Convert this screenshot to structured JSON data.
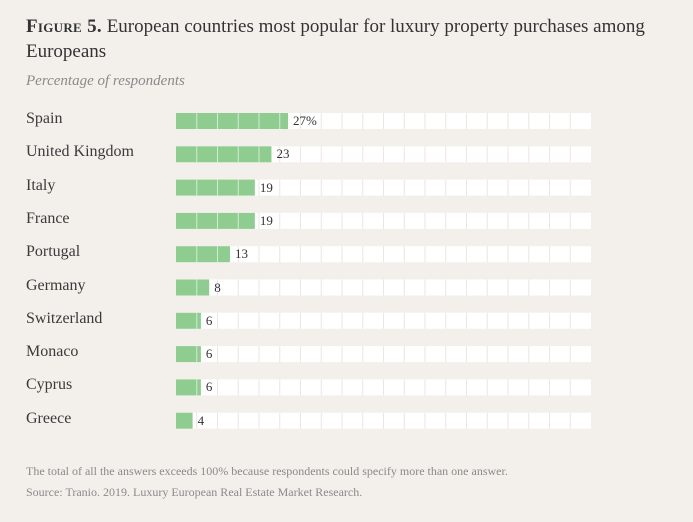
{
  "chart_data": {
    "type": "bar",
    "orientation": "horizontal",
    "title_prefix": "Figure 5.",
    "title": "European countries most popular for luxury property purchases among Europeans",
    "subtitle": "Percentage of respondents",
    "categories": [
      "Spain",
      "United Kingdom",
      "Italy",
      "France",
      "Portugal",
      "Germany",
      "Switzerland",
      "Monaco",
      "Cyprus",
      "Greece"
    ],
    "values": [
      27,
      23,
      19,
      19,
      13,
      8,
      6,
      6,
      6,
      4
    ],
    "value_labels": [
      "27%",
      "23",
      "19",
      "19",
      "13",
      "8",
      "6",
      "6",
      "6",
      "4"
    ],
    "xlim": [
      0,
      100
    ],
    "grid": true,
    "colors": {
      "bar": "#8fcc8f",
      "track": "#ffffff",
      "grid": "#ebe7e1",
      "background": "#f3f0ec"
    }
  },
  "footnotes": {
    "note": "The total of all the answers exceeds 100% because respondents could specify more than one answer.",
    "source": "Source: Tranio. 2019. Luxury European Real Estate Market Research."
  }
}
